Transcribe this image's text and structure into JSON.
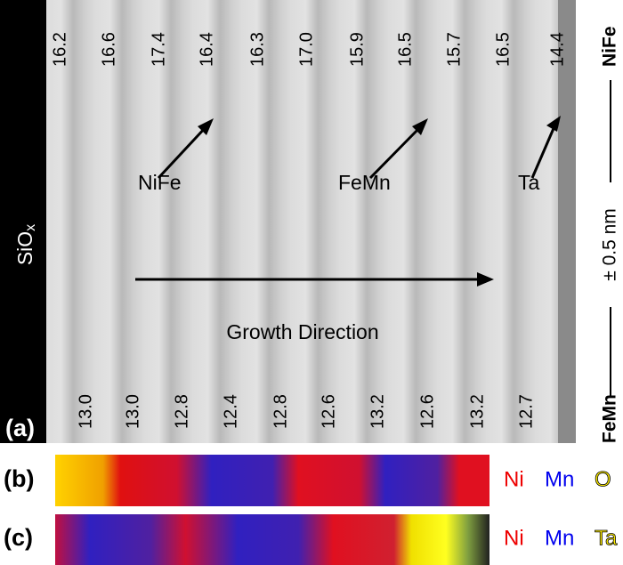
{
  "panel_a": {
    "label": "(a)",
    "substrate": {
      "base": "SiO",
      "sub": "x"
    },
    "top_values": [
      "16.2",
      "16.6",
      "17.4",
      "16.4",
      "16.3",
      "17.0",
      "15.9",
      "16.5",
      "15.7",
      "16.5",
      "14.4"
    ],
    "bottom_values": [
      "13.0",
      "13.0",
      "12.8",
      "12.4",
      "12.8",
      "12.6",
      "13.2",
      "12.6",
      "13.2",
      "12.7"
    ],
    "annotations": [
      "NiFe",
      "FeMn",
      "Ta"
    ],
    "growth_direction": "Growth Direction",
    "scale": {
      "bottom": "FeMn",
      "middle": "± 0.5 nm",
      "top": "NiFe"
    }
  },
  "panel_b": {
    "label": "(b)",
    "legend": [
      {
        "text": "Ni",
        "color": "#ee0000"
      },
      {
        "text": "Mn",
        "color": "#0000ee"
      },
      {
        "text": "O",
        "color": "#ffee00"
      }
    ]
  },
  "panel_c": {
    "label": "(c)",
    "legend": [
      {
        "text": "Ni",
        "color": "#ee0000"
      },
      {
        "text": "Mn",
        "color": "#0000ee"
      },
      {
        "text": "Ta",
        "color": "#ffee00"
      }
    ]
  }
}
